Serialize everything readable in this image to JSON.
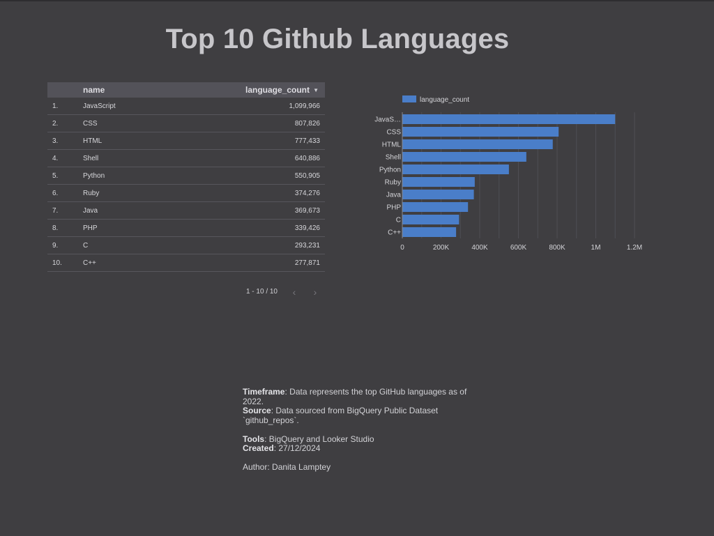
{
  "title": "Top 10 Github Languages",
  "table": {
    "headers": {
      "name": "name",
      "count": "language_count"
    },
    "rows": [
      {
        "idx": "1.",
        "name": "JavaScript",
        "count": "1,099,966"
      },
      {
        "idx": "2.",
        "name": "CSS",
        "count": "807,826"
      },
      {
        "idx": "3.",
        "name": "HTML",
        "count": "777,433"
      },
      {
        "idx": "4.",
        "name": "Shell",
        "count": "640,886"
      },
      {
        "idx": "5.",
        "name": "Python",
        "count": "550,905"
      },
      {
        "idx": "6.",
        "name": "Ruby",
        "count": "374,276"
      },
      {
        "idx": "7.",
        "name": "Java",
        "count": "369,673"
      },
      {
        "idx": "8.",
        "name": "PHP",
        "count": "339,426"
      },
      {
        "idx": "9.",
        "name": "C",
        "count": "293,231"
      },
      {
        "idx": "10.",
        "name": "C++",
        "count": "277,871"
      }
    ],
    "pagination": "1 - 10 / 10"
  },
  "chart_data": {
    "type": "bar",
    "orientation": "horizontal",
    "categories": [
      "JavaScript",
      "CSS",
      "HTML",
      "Shell",
      "Python",
      "Ruby",
      "Java",
      "PHP",
      "C",
      "C++"
    ],
    "category_labels": [
      "JavaS…",
      "CSS",
      "HTML",
      "Shell",
      "Python",
      "Ruby",
      "Java",
      "PHP",
      "C",
      "C++"
    ],
    "series": [
      {
        "name": "language_count",
        "values": [
          1099966,
          807826,
          777433,
          640886,
          550905,
          374276,
          369673,
          339426,
          293231,
          277871
        ]
      }
    ],
    "xlim": [
      0,
      1200000
    ],
    "x_ticks": [
      0,
      200000,
      400000,
      600000,
      800000,
      1000000,
      1200000
    ],
    "x_tick_labels": [
      "0",
      "200K",
      "400K",
      "600K",
      "800K",
      "1M",
      "1.2M"
    ],
    "grid": true,
    "legend": "top-left",
    "bar_color": "#4a7ec9"
  },
  "notes": {
    "timeframe_label": "Timeframe",
    "timeframe_text": ": Data represents the top GitHub languages as of 2022.",
    "source_label": "Source",
    "source_text": ": Data sourced from BigQuery Public Dataset `github_repos`.",
    "tools_label": "Tools",
    "tools_text": ": BigQuery and Looker Studio",
    "created_label": "Created",
    "created_text": ": 27/12/2024",
    "author_text": "Author: Danita Lamptey"
  }
}
